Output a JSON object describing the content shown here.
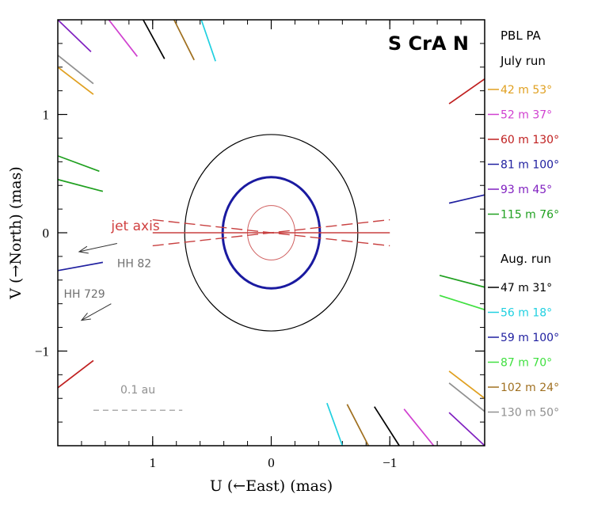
{
  "chart_data": {
    "type": "scatter",
    "title": "S CrA N",
    "xlabel": "U (←East) (mas)",
    "ylabel": "V (→North) (mas)",
    "xlim": [
      1.8,
      -1.8
    ],
    "ylim": [
      -1.8,
      1.8
    ],
    "x_ticks": [
      {
        "value": 1,
        "label": "1"
      },
      {
        "value": 0,
        "label": "0"
      },
      {
        "value": -1,
        "label": "−1"
      }
    ],
    "y_ticks": [
      {
        "value": 1,
        "label": "1"
      },
      {
        "value": 0,
        "label": "0"
      },
      {
        "value": -1,
        "label": "−1"
      }
    ],
    "x_minor_step": 0.2,
    "y_minor_step": 0.2,
    "legend_header": "PBL PA",
    "run_groups": [
      {
        "name": "July run",
        "entries": [
          {
            "label": "42 m 53°",
            "color": "#e0a020"
          },
          {
            "label": "52 m 37°",
            "color": "#d040d0"
          },
          {
            "label": "60 m 130°",
            "color": "#c02020"
          },
          {
            "label": "81 m 100°",
            "color": "#2020a0"
          },
          {
            "label": "93 m 45°",
            "color": "#8020c0"
          },
          {
            "label": "115 m 76°",
            "color": "#20a020"
          }
        ]
      },
      {
        "name": "Aug. run",
        "entries": [
          {
            "label": "47 m 31°",
            "color": "#000000"
          },
          {
            "label": "56 m 18°",
            "color": "#20d0e0"
          },
          {
            "label": "59 m 100°",
            "color": "#2020a0"
          },
          {
            "label": "87 m 70°",
            "color": "#40e040"
          },
          {
            "label": "102 m 24°",
            "color": "#a07020"
          },
          {
            "label": "130 m 50°",
            "color": "#909090"
          }
        ]
      }
    ],
    "baseline_segments": [
      {
        "color": "#8020c0",
        "x1": 1.8,
        "y1": 1.8,
        "x2": 1.52,
        "y2": 1.53
      },
      {
        "color": "#d040d0",
        "x1": 1.37,
        "y1": 1.8,
        "x2": 1.13,
        "y2": 1.49
      },
      {
        "color": "#000000",
        "x1": 1.08,
        "y1": 1.8,
        "x2": 0.9,
        "y2": 1.47
      },
      {
        "color": "#a07020",
        "x1": 0.82,
        "y1": 1.8,
        "x2": 0.65,
        "y2": 1.46
      },
      {
        "color": "#20d0e0",
        "x1": 0.59,
        "y1": 1.8,
        "x2": 0.47,
        "y2": 1.45
      },
      {
        "color": "#909090",
        "x1": 1.8,
        "y1": 1.5,
        "x2": 1.5,
        "y2": 1.26
      },
      {
        "color": "#e0a020",
        "x1": 1.8,
        "y1": 1.4,
        "x2": 1.5,
        "y2": 1.17
      },
      {
        "color": "#20a020",
        "x1": 1.8,
        "y1": 0.65,
        "x2": 1.45,
        "y2": 0.52
      },
      {
        "color": "#20a020",
        "x1": 1.8,
        "y1": 0.45,
        "x2": 1.42,
        "y2": 0.35
      },
      {
        "color": "#2020a0",
        "x1": 1.8,
        "y1": -0.32,
        "x2": 1.42,
        "y2": -0.25
      },
      {
        "color": "#c02020",
        "x1": 1.8,
        "y1": -1.31,
        "x2": 1.5,
        "y2": -1.08
      },
      {
        "color": "#c02020",
        "x1": -1.5,
        "y1": 1.09,
        "x2": -1.8,
        "y2": 1.3
      },
      {
        "color": "#2020a0",
        "x1": -1.5,
        "y1": 0.25,
        "x2": -1.8,
        "y2": 0.32
      },
      {
        "color": "#20a020",
        "x1": -1.42,
        "y1": -0.36,
        "x2": -1.8,
        "y2": -0.46
      },
      {
        "color": "#40e040",
        "x1": -1.42,
        "y1": -0.53,
        "x2": -1.8,
        "y2": -0.65
      },
      {
        "color": "#e0a020",
        "x1": -1.5,
        "y1": -1.17,
        "x2": -1.8,
        "y2": -1.4
      },
      {
        "color": "#909090",
        "x1": -1.5,
        "y1": -1.27,
        "x2": -1.8,
        "y2": -1.51
      },
      {
        "color": "#8020c0",
        "x1": -1.5,
        "y1": -1.52,
        "x2": -1.8,
        "y2": -1.8
      },
      {
        "color": "#20d0e0",
        "x1": -0.47,
        "y1": -1.44,
        "x2": -0.6,
        "y2": -1.8
      },
      {
        "color": "#a07020",
        "x1": -0.64,
        "y1": -1.45,
        "x2": -0.82,
        "y2": -1.8
      },
      {
        "color": "#000000",
        "x1": -0.87,
        "y1": -1.47,
        "x2": -1.08,
        "y2": -1.8
      },
      {
        "color": "#d040d0",
        "x1": -1.12,
        "y1": -1.49,
        "x2": -1.37,
        "y2": -1.8
      }
    ],
    "ellipses": [
      {
        "cx": 0,
        "cy": 0,
        "rx": 0.73,
        "ry": 0.83,
        "color": "#000000",
        "width": 1.2,
        "dash": ""
      },
      {
        "cx": 0,
        "cy": 0,
        "rx": 0.41,
        "ry": 0.47,
        "color": "#1a1aa0",
        "width": 3,
        "dash": ""
      },
      {
        "cx": 0,
        "cy": 0,
        "rx": 0.2,
        "ry": 0.23,
        "color": "#d06060",
        "width": 1,
        "dash": ""
      }
    ],
    "jet_lines": [
      {
        "x1": 1.0,
        "y1": 0.11,
        "x2": -1.0,
        "y2": -0.11,
        "dash": "14,6"
      },
      {
        "x1": 1.0,
        "y1": -0.11,
        "x2": -1.0,
        "y2": 0.11,
        "dash": "14,6"
      },
      {
        "x1": 1.0,
        "y1": 0.0,
        "x2": -1.0,
        "y2": 0.0,
        "dash": ""
      }
    ],
    "jet_color": "#c84040",
    "annotations": {
      "jet_axis": {
        "text": "jet axis",
        "x": 1.35,
        "y": 0.02,
        "color": "#d04040"
      },
      "hh82": {
        "text": "HH 82",
        "x": 1.3,
        "y": -0.29,
        "color": "#707070"
      },
      "hh729": {
        "text": "HH 729",
        "x": 1.75,
        "y": -0.55,
        "color": "#707070"
      },
      "scale_bar": {
        "text": "0.1 au",
        "x_start": 1.5,
        "x_end": 0.75,
        "y": -1.5,
        "label_y": -1.36,
        "color": "#909090"
      }
    },
    "arrows": [
      {
        "x1": 1.3,
        "y1": -0.09,
        "x2": 1.62,
        "y2": -0.16,
        "color": "#303030"
      },
      {
        "x1": 1.35,
        "y1": -0.6,
        "x2": 1.6,
        "y2": -0.74,
        "color": "#303030"
      }
    ]
  }
}
